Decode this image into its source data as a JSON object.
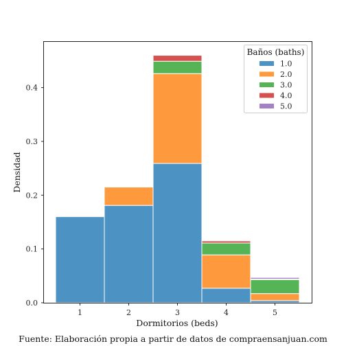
{
  "chart_data": {
    "type": "bar",
    "stacked": true,
    "categories": [
      "1",
      "2",
      "3",
      "4",
      "5"
    ],
    "xlabel": "Dormitorios (beds)",
    "ylabel": "Densidad",
    "ylim": [
      0,
      0.485
    ],
    "yticks": [
      "0.0",
      "0.1",
      "0.2",
      "0.3",
      "0.4"
    ],
    "grid": false,
    "legend": {
      "title": "Baños (baths)",
      "placement": "top-right"
    },
    "series": [
      {
        "name": "1.0",
        "color": "#4c92c3",
        "values": [
          0.16,
          0.181,
          0.259,
          0.027,
          0.004
        ]
      },
      {
        "name": "2.0",
        "color": "#ff993e",
        "values": [
          0.0,
          0.034,
          0.167,
          0.062,
          0.013
        ]
      },
      {
        "name": "3.0",
        "color": "#56b356",
        "values": [
          0.0,
          0.0,
          0.023,
          0.022,
          0.026
        ]
      },
      {
        "name": "4.0",
        "color": "#d5504f",
        "values": [
          0.0,
          0.0,
          0.011,
          0.004,
          0.001
        ]
      },
      {
        "name": "5.0",
        "color": "#a481c4",
        "values": [
          0.0,
          0.0,
          0.0,
          0.0,
          0.003
        ]
      }
    ]
  },
  "caption": "Fuente: Elaboración propia a partir de datos de compraensanjuan.com"
}
